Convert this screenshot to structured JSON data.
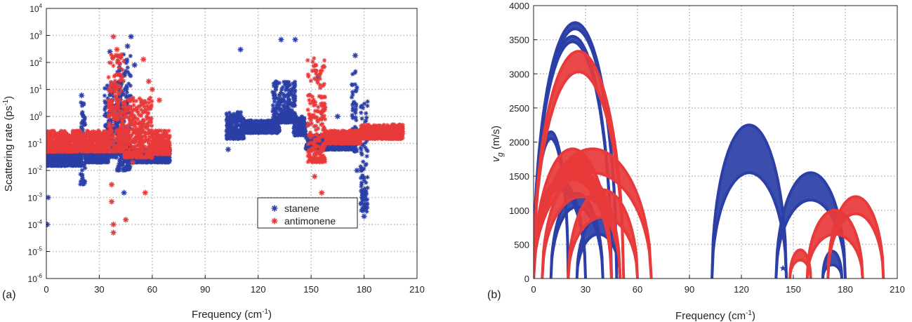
{
  "chart_data": [
    {
      "type": "scatter",
      "panel_label": "(a)",
      "xlabel": "Frequency (cm",
      "xlabel_sup": "-1",
      "xlabel_end": ")",
      "ylabel": "Scattering rate (ps",
      "ylabel_sup": "-1",
      "ylabel_end": ")",
      "xlim": [
        0,
        210
      ],
      "ylim": [
        1e-06,
        10000.0
      ],
      "yscale": "log",
      "grid": true,
      "legend_position": "bottom-right",
      "xticks": [
        "0",
        "30",
        "60",
        "90",
        "120",
        "150",
        "180",
        "210"
      ],
      "yticks": [
        {
          "base": "10",
          "exp": "-6"
        },
        {
          "base": "10",
          "exp": "-5"
        },
        {
          "base": "10",
          "exp": "-4"
        },
        {
          "base": "10",
          "exp": "-3"
        },
        {
          "base": "10",
          "exp": "-2"
        },
        {
          "base": "10",
          "exp": "-1"
        },
        {
          "base": "10",
          "exp": "0"
        },
        {
          "base": "10",
          "exp": "1"
        },
        {
          "base": "10",
          "exp": "2"
        },
        {
          "base": "10",
          "exp": "3"
        },
        {
          "base": "10",
          "exp": "4"
        }
      ],
      "series": [
        {
          "name": "stanene",
          "color": "#2b3fa6",
          "marker": "asterisk",
          "bands": [
            {
              "x": [
                0,
                20
              ],
              "lo": 0.015,
              "hi": 0.045
            },
            {
              "x": [
                19,
                22
              ],
              "lo": 0.003,
              "hi": 6
            },
            {
              "x": [
                22,
                35
              ],
              "lo": 0.02,
              "hi": 0.06
            },
            {
              "x": [
                33,
                46
              ],
              "lo": 0.03,
              "hi": 20
            },
            {
              "x": [
                40,
                48
              ],
              "lo": 0.01,
              "hi": 200
            },
            {
              "x": [
                47,
                70
              ],
              "lo": 0.02,
              "hi": 0.06
            },
            {
              "x": [
                102,
                112
              ],
              "lo": 0.15,
              "hi": 1.5
            },
            {
              "x": [
                112,
                132
              ],
              "lo": 0.25,
              "hi": 0.7
            },
            {
              "x": [
                128,
                141
              ],
              "lo": 0.6,
              "hi": 20
            },
            {
              "x": [
                140,
                147
              ],
              "lo": 0.2,
              "hi": 1
            },
            {
              "x": [
                147,
                175
              ],
              "lo": 0.06,
              "hi": 0.2
            },
            {
              "x": [
                173,
                176
              ],
              "lo": 0.05,
              "hi": 50
            },
            {
              "x": [
                178,
                182
              ],
              "lo": 0.0003,
              "hi": 5
            }
          ],
          "points": [
            {
              "x": 0.5,
              "y": 0.0001
            },
            {
              "x": 1,
              "y": 0.001
            },
            {
              "x": 20,
              "y": 6
            },
            {
              "x": 36,
              "y": 250
            },
            {
              "x": 48,
              "y": 900
            },
            {
              "x": 46,
              "y": 400
            },
            {
              "x": 50,
              "y": 80
            },
            {
              "x": 44,
              "y": 0.0015
            },
            {
              "x": 110,
              "y": 300
            },
            {
              "x": 133,
              "y": 700
            },
            {
              "x": 141,
              "y": 700
            },
            {
              "x": 154,
              "y": 30
            },
            {
              "x": 175,
              "y": 180
            },
            {
              "x": 103,
              "y": 0.06
            },
            {
              "x": 165,
              "y": 1
            },
            {
              "x": 180,
              "y": 0.0002
            },
            {
              "x": 179,
              "y": 0.001
            },
            {
              "x": 176,
              "y": 0.01
            }
          ]
        },
        {
          "name": "antimonene",
          "color": "#e83a3a",
          "marker": "asterisk",
          "bands": [
            {
              "x": [
                0,
                36
              ],
              "lo": 0.05,
              "hi": 0.3
            },
            {
              "x": [
                35,
                44
              ],
              "lo": 0.05,
              "hi": 200
            },
            {
              "x": [
                44,
                60
              ],
              "lo": 0.03,
              "hi": 5
            },
            {
              "x": [
                60,
                70
              ],
              "lo": 0.04,
              "hi": 0.3
            },
            {
              "x": [
                148,
                158
              ],
              "lo": 0.02,
              "hi": 150
            },
            {
              "x": [
                158,
                178
              ],
              "lo": 0.1,
              "hi": 0.3
            },
            {
              "x": [
                178,
                202
              ],
              "lo": 0.15,
              "hi": 0.5
            }
          ],
          "points": [
            {
              "x": 38,
              "y": 900
            },
            {
              "x": 38,
              "y": 5e-05
            },
            {
              "x": 38,
              "y": 0.0001
            },
            {
              "x": 37,
              "y": 0.0007
            },
            {
              "x": 37,
              "y": 0.003
            },
            {
              "x": 45,
              "y": 0.00015
            },
            {
              "x": 56,
              "y": 0.0015
            },
            {
              "x": 55,
              "y": 130
            },
            {
              "x": 58,
              "y": 20
            },
            {
              "x": 60,
              "y": 10
            },
            {
              "x": 64,
              "y": 4
            },
            {
              "x": 52,
              "y": 0.04
            },
            {
              "x": 49,
              "y": 0.02
            },
            {
              "x": 156,
              "y": 0.0015
            },
            {
              "x": 152,
              "y": 0.006
            },
            {
              "x": 40,
              "y": 300
            },
            {
              "x": 42,
              "y": 150
            }
          ]
        }
      ]
    },
    {
      "type": "scatter",
      "panel_label": "(b)",
      "xlabel": "Frequency (cm",
      "xlabel_sup": "-1",
      "xlabel_end": ")",
      "ylabel": "v",
      "ylabel_sub": "g",
      "ylabel_end": " (m/s)",
      "xlim": [
        0,
        210
      ],
      "ylim": [
        0,
        4000
      ],
      "grid": true,
      "xticks": [
        "0",
        "30",
        "60",
        "90",
        "120",
        "150",
        "180",
        "210"
      ],
      "yticks": [
        "0",
        "500",
        "1000",
        "1500",
        "2000",
        "2500",
        "3000",
        "3500",
        "4000"
      ],
      "series": [
        {
          "name": "stanene",
          "color": "#2b3fa6",
          "marker": "star",
          "arcs": [
            {
              "x0": 0,
              "x1": 48,
              "peak": 3750,
              "thick": 90
            },
            {
              "x0": 0,
              "x1": 45,
              "peak": 3550,
              "thick": 80
            },
            {
              "x0": 0,
              "x1": 20,
              "peak": 2150,
              "thick": 100
            },
            {
              "x0": 0,
              "x1": 30,
              "peak": 1450,
              "thick": 150
            },
            {
              "x0": 10,
              "x1": 40,
              "peak": 1250,
              "thick": 200
            },
            {
              "x0": 25,
              "x1": 50,
              "peak": 900,
              "thick": 250
            },
            {
              "x0": 103,
              "x1": 146,
              "peak": 2250,
              "thick": 700
            },
            {
              "x0": 140,
              "x1": 180,
              "peak": 1550,
              "thick": 400
            },
            {
              "x0": 167,
              "x1": 178,
              "peak": 400,
              "thick": 200
            }
          ],
          "points": [
            {
              "x": 144,
              "y": 150
            }
          ]
        },
        {
          "name": "antimonene",
          "color": "#e83a3a",
          "marker": "star",
          "arcs": [
            {
              "x0": 0,
              "x1": 52,
              "peak": 3330,
              "thick": 300
            },
            {
              "x0": 0,
              "x1": 45,
              "peak": 1900,
              "thick": 450
            },
            {
              "x0": 0,
              "x1": 68,
              "peak": 1900,
              "thick": 350
            },
            {
              "x0": 5,
              "x1": 50,
              "peak": 1550,
              "thick": 350
            },
            {
              "x0": 20,
              "x1": 60,
              "peak": 1300,
              "thick": 400
            },
            {
              "x0": 148,
              "x1": 160,
              "peak": 420,
              "thick": 150
            },
            {
              "x0": 158,
              "x1": 190,
              "peak": 1000,
              "thick": 350
            },
            {
              "x0": 170,
              "x1": 202,
              "peak": 1200,
              "thick": 250
            }
          ],
          "points": []
        }
      ]
    }
  ]
}
